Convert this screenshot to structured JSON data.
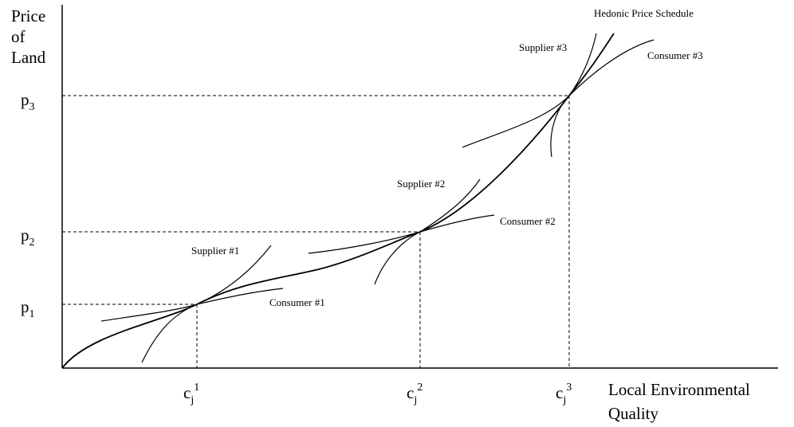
{
  "y_axis_label": [
    "Price",
    "of",
    "Land"
  ],
  "x_axis_label": [
    "Local Environmental",
    "Quality"
  ],
  "price_ticks": [
    {
      "base": "p",
      "sub": "1"
    },
    {
      "base": "p",
      "sub": "2"
    },
    {
      "base": "p",
      "sub": "3"
    }
  ],
  "quality_ticks": [
    {
      "base": "c",
      "sub": "j",
      "sup": "1"
    },
    {
      "base": "c",
      "sub": "j",
      "sup": "2"
    },
    {
      "base": "c",
      "sub": "j",
      "sup": "3"
    }
  ],
  "curve_labels": {
    "hedonic": "Hedonic Price Schedule",
    "supplier_1": "Supplier #1",
    "consumer_1": "Consumer #1",
    "supplier_2": "Supplier #2",
    "consumer_2": "Consumer #2",
    "supplier_3": "Supplier #3",
    "consumer_3": "Consumer #3"
  }
}
